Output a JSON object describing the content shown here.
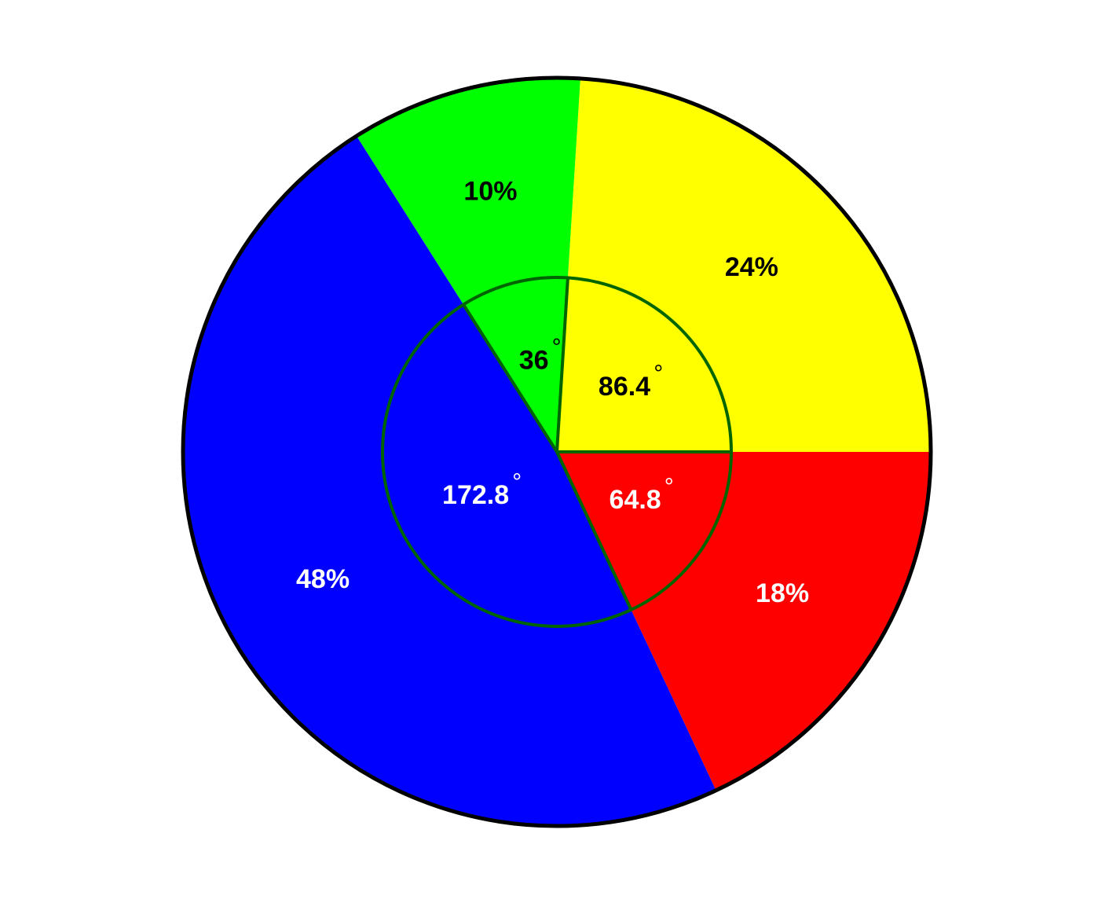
{
  "chart_data": {
    "type": "pie",
    "categories": [
      "Yellow",
      "Green",
      "Blue",
      "Red"
    ],
    "values": [
      24,
      10,
      48,
      18
    ],
    "percent_labels": [
      "24%",
      "10%",
      "48%",
      "18%"
    ],
    "degree_values": [
      86.4,
      36,
      172.8,
      64.8
    ],
    "degree_labels": [
      "86.4",
      "36",
      "172.8",
      "64.8"
    ],
    "degree_symbol": "°",
    "colors": [
      "#ffff00",
      "#00ff00",
      "#0000ff",
      "#ff0000"
    ],
    "label_colors": [
      "#000000",
      "#000000",
      "#ffffff",
      "#ffffff"
    ],
    "outline_color": "#000000",
    "inner_circle_color": "#006400",
    "legend": "none",
    "title": ""
  }
}
